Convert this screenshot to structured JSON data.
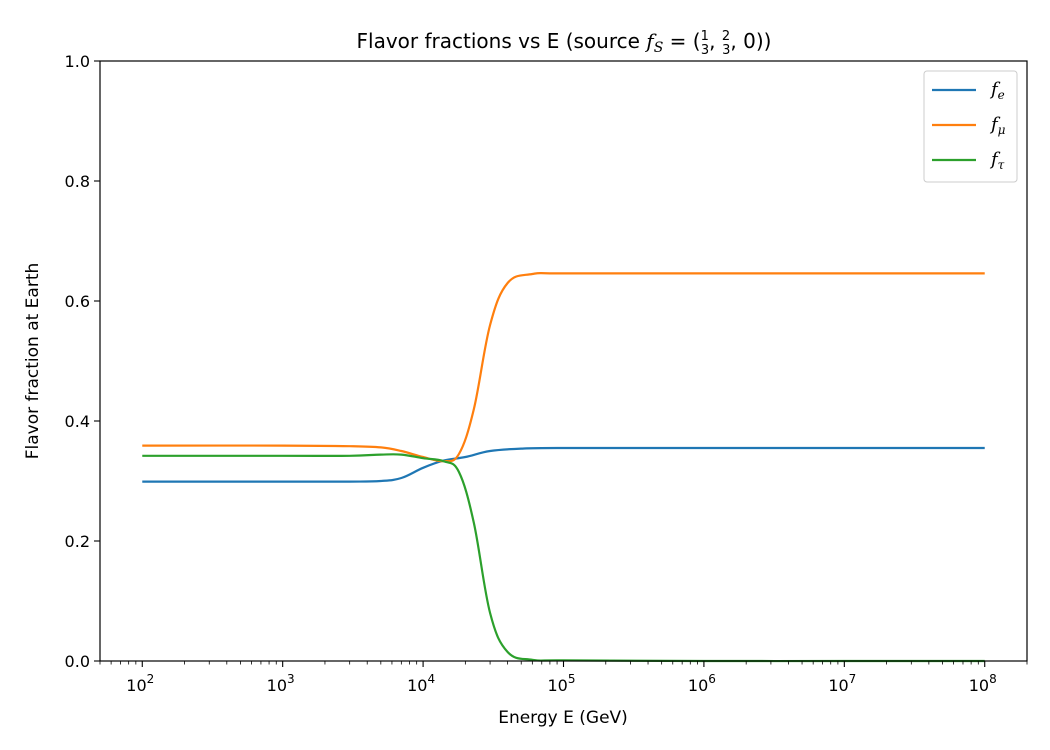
{
  "chart_data": {
    "type": "line",
    "title": "Flavor fractions vs E  (source f_S = (1/3, 2/3, 0))",
    "title_parts": {
      "prefix": "Flavor fractions vs E  (source ",
      "f": "f",
      "sub": "S",
      "equals": " = (",
      "n1": "1",
      "d1": "3",
      "sep1": ", ",
      "n2": "2",
      "d2": "3",
      "sep2": ", 0))"
    },
    "xlabel": "Energy E (GeV)",
    "ylabel": "Flavor fraction at Earth",
    "xscale": "log",
    "xlim": [
      50,
      200000000
    ],
    "ylim": [
      0,
      1.0
    ],
    "x_ticks": [
      {
        "value": 100,
        "label": "10",
        "exp": "2"
      },
      {
        "value": 1000,
        "label": "10",
        "exp": "3"
      },
      {
        "value": 10000,
        "label": "10",
        "exp": "4"
      },
      {
        "value": 100000,
        "label": "10",
        "exp": "5"
      },
      {
        "value": 1000000,
        "label": "10",
        "exp": "6"
      },
      {
        "value": 10000000,
        "label": "10",
        "exp": "7"
      },
      {
        "value": 100000000,
        "label": "10",
        "exp": "8"
      }
    ],
    "y_ticks": [
      {
        "value": 0.0,
        "label": "0.0"
      },
      {
        "value": 0.2,
        "label": "0.2"
      },
      {
        "value": 0.4,
        "label": "0.4"
      },
      {
        "value": 0.6,
        "label": "0.6"
      },
      {
        "value": 0.8,
        "label": "0.8"
      },
      {
        "value": 1.0,
        "label": "1.0"
      }
    ],
    "legend_position": "top-right",
    "grid": false,
    "series": [
      {
        "name": "f_e",
        "symbol": "f",
        "sub": "e",
        "color": "#1f77b4",
        "points": [
          [
            100,
            0.299
          ],
          [
            1000,
            0.299
          ],
          [
            3000,
            0.299
          ],
          [
            5000,
            0.3
          ],
          [
            7000,
            0.305
          ],
          [
            10000,
            0.322
          ],
          [
            14000,
            0.334
          ],
          [
            20000,
            0.34
          ],
          [
            30000,
            0.35
          ],
          [
            50000,
            0.354
          ],
          [
            100000,
            0.355
          ],
          [
            1000000,
            0.355
          ],
          [
            10000000,
            0.355
          ],
          [
            100000000,
            0.355
          ]
        ]
      },
      {
        "name": "f_μ",
        "symbol": "f",
        "sub": "μ",
        "color": "#ff7f0e",
        "points": [
          [
            100,
            0.359
          ],
          [
            1000,
            0.359
          ],
          [
            3000,
            0.358
          ],
          [
            5000,
            0.356
          ],
          [
            7000,
            0.35
          ],
          [
            10000,
            0.34
          ],
          [
            14000,
            0.333
          ],
          [
            18000,
            0.345
          ],
          [
            23000,
            0.42
          ],
          [
            30000,
            0.56
          ],
          [
            40000,
            0.63
          ],
          [
            60000,
            0.645
          ],
          [
            100000,
            0.646
          ],
          [
            1000000,
            0.646
          ],
          [
            10000000,
            0.646
          ],
          [
            100000000,
            0.646
          ]
        ]
      },
      {
        "name": "f_τ",
        "symbol": "f",
        "sub": "τ",
        "color": "#2ca02c",
        "points": [
          [
            100,
            0.342
          ],
          [
            1000,
            0.342
          ],
          [
            3000,
            0.342
          ],
          [
            5000,
            0.344
          ],
          [
            7000,
            0.344
          ],
          [
            10000,
            0.338
          ],
          [
            14000,
            0.333
          ],
          [
            18000,
            0.315
          ],
          [
            23000,
            0.23
          ],
          [
            30000,
            0.08
          ],
          [
            40000,
            0.015
          ],
          [
            60000,
            0.002
          ],
          [
            100000,
            0.001
          ],
          [
            1000000,
            0.0
          ],
          [
            10000000,
            0.0
          ],
          [
            100000000,
            0.0
          ]
        ]
      }
    ]
  }
}
